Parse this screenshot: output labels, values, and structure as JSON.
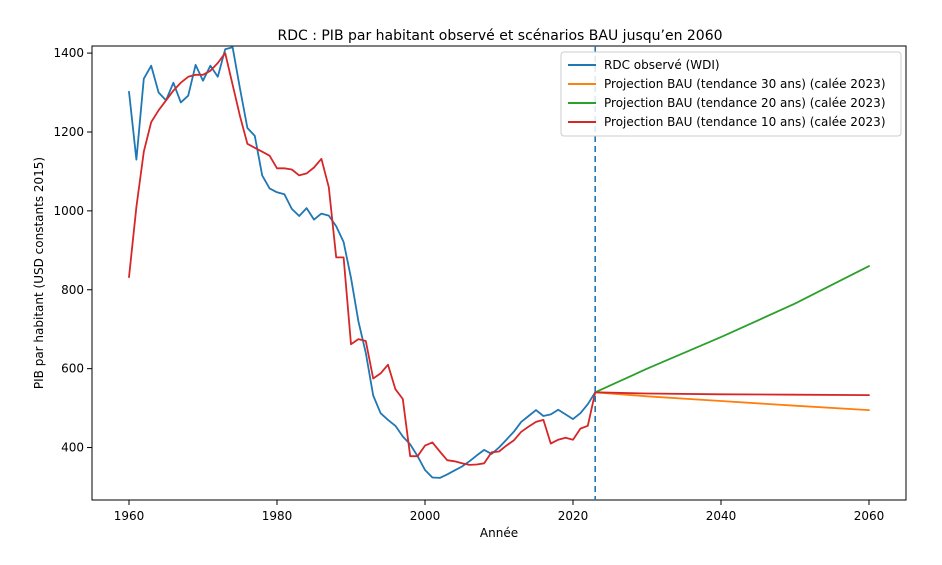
{
  "chart_data": {
    "type": "line",
    "title": "RDC : PIB par habitant observé et scénarios BAU jusqu’en 2060",
    "xlabel": "Année",
    "ylabel": "PIB par habitant (USD constants 2015)",
    "xlim": [
      1955,
      2065
    ],
    "ylim": [
      267,
      1418
    ],
    "x_ticks": [
      1960,
      1980,
      2000,
      2020,
      2040,
      2060
    ],
    "y_ticks": [
      400,
      600,
      800,
      1000,
      1200,
      1400
    ],
    "vline": {
      "x": 2023,
      "color": "#1f77b4",
      "style": "dashed"
    },
    "legend_position": "top-right",
    "series": [
      {
        "name": "RDC observé (WDI)",
        "color": "#1f77b4",
        "x": [
          1960,
          1961,
          1962,
          1963,
          1964,
          1965,
          1966,
          1967,
          1968,
          1969,
          1970,
          1971,
          1972,
          1973,
          1974,
          1975,
          1976,
          1977,
          1978,
          1979,
          1980,
          1981,
          1982,
          1983,
          1984,
          1985,
          1986,
          1987,
          1988,
          1989,
          1990,
          1991,
          1992,
          1993,
          1994,
          1995,
          1996,
          1997,
          1998,
          1999,
          2000,
          2001,
          2002,
          2003,
          2004,
          2005,
          2006,
          2007,
          2008,
          2009,
          2010,
          2011,
          2012,
          2013,
          2014,
          2015,
          2016,
          2017,
          2018,
          2019,
          2020,
          2021,
          2022,
          2023
        ],
        "y": [
          1302,
          1130,
          1335,
          1368,
          1300,
          1280,
          1325,
          1275,
          1292,
          1370,
          1330,
          1368,
          1340,
          1410,
          1415,
          1310,
          1210,
          1190,
          1090,
          1057,
          1047,
          1042,
          1005,
          987,
          1007,
          978,
          993,
          988,
          961,
          921,
          830,
          720,
          640,
          532,
          487,
          470,
          455,
          428,
          408,
          378,
          343,
          324,
          323,
          332,
          342,
          352,
          365,
          380,
          394,
          384,
          400,
          420,
          440,
          465,
          480,
          495,
          480,
          484,
          496,
          484,
          472,
          487,
          510,
          540
        ]
      },
      {
        "name": "Projection BAU (tendance 30 ans) (calée 2023)",
        "color": "#ff7f0e",
        "x": [
          2023,
          2030,
          2040,
          2050,
          2060
        ],
        "y": [
          540,
          530,
          518,
          506,
          495
        ]
      },
      {
        "name": "Projection BAU (tendance 20 ans) (calée 2023)",
        "color": "#2ca02c",
        "x": [
          2023,
          2030,
          2040,
          2050,
          2060
        ],
        "y": [
          540,
          600,
          680,
          765,
          860
        ]
      },
      {
        "name": "Projection BAU (tendance 10 ans) (calée 2023)",
        "color": "#d62728",
        "x": [
          1960,
          1961,
          1962,
          1963,
          1964,
          1965,
          1966,
          1967,
          1968,
          1969,
          1970,
          1971,
          1972,
          1973,
          1974,
          1975,
          1976,
          1977,
          1978,
          1979,
          1980,
          1981,
          1982,
          1983,
          1984,
          1985,
          1986,
          1987,
          1988,
          1989,
          1990,
          1991,
          1992,
          1993,
          1994,
          1995,
          1996,
          1997,
          1998,
          1999,
          2000,
          2001,
          2002,
          2003,
          2004,
          2005,
          2006,
          2007,
          2008,
          2009,
          2010,
          2011,
          2012,
          2013,
          2014,
          2015,
          2016,
          2017,
          2018,
          2019,
          2020,
          2021,
          2022,
          2023,
          2030,
          2040,
          2050,
          2060
        ],
        "y": [
          832,
          1010,
          1150,
          1225,
          1255,
          1280,
          1305,
          1325,
          1340,
          1345,
          1345,
          1355,
          1375,
          1400,
          1320,
          1240,
          1170,
          1160,
          1150,
          1140,
          1108,
          1108,
          1105,
          1090,
          1095,
          1110,
          1132,
          1060,
          882,
          882,
          662,
          675,
          670,
          575,
          588,
          610,
          548,
          523,
          378,
          378,
          405,
          413,
          390,
          368,
          365,
          360,
          356,
          357,
          360,
          388,
          390,
          405,
          418,
          440,
          453,
          465,
          470,
          410,
          420,
          425,
          420,
          448,
          455,
          540,
          537,
          535,
          534,
          533
        ]
      }
    ]
  }
}
